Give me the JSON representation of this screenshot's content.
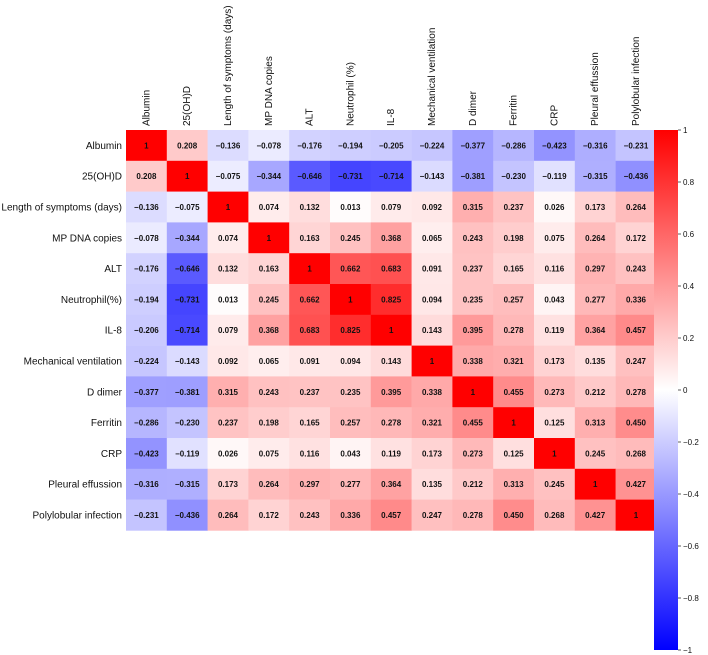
{
  "chart_data": {
    "type": "heatmap",
    "title": "",
    "labels": [
      "Albumin",
      "25(OH)D",
      "Length of symptoms  (days)",
      "MP DNA copies",
      "ALT",
      "Neutrophil(%)",
      "IL-8",
      "Mechanical ventilation",
      "D dimer",
      "Ferritin",
      "CRP",
      "Pleural effussion",
      "Polylobular infection"
    ],
    "column_labels": [
      "Albumin",
      "25(OH)D",
      "Length of symptoms   (days)",
      "MP DNA copies",
      "ALT",
      "Neutrophil (%)",
      "IL-8",
      "Mechanical ventilation",
      "D dimer",
      "Ferritin",
      "CRP",
      "Pleural effussion",
      "Polylobular infection"
    ],
    "matrix": [
      [
        1,
        0.208,
        -0.136,
        -0.078,
        -0.176,
        -0.194,
        -0.205,
        -0.224,
        -0.377,
        -0.286,
        -0.423,
        -0.316,
        -0.231
      ],
      [
        0.208,
        1,
        -0.075,
        -0.344,
        -0.646,
        -0.731,
        -0.714,
        -0.143,
        -0.381,
        -0.23,
        -0.119,
        -0.315,
        -0.436
      ],
      [
        -0.136,
        -0.075,
        1,
        0.074,
        0.132,
        0.013,
        0.079,
        0.092,
        0.315,
        0.237,
        0.026,
        0.173,
        0.264
      ],
      [
        -0.078,
        -0.344,
        0.074,
        1,
        0.163,
        0.245,
        0.368,
        0.065,
        0.243,
        0.198,
        0.075,
        0.264,
        0.172
      ],
      [
        -0.176,
        -0.646,
        0.132,
        0.163,
        1,
        0.662,
        0.683,
        0.091,
        0.237,
        0.165,
        0.116,
        0.297,
        0.243
      ],
      [
        -0.194,
        -0.731,
        0.013,
        0.245,
        0.662,
        1,
        0.825,
        0.094,
        0.235,
        0.257,
        0.043,
        0.277,
        0.336
      ],
      [
        -0.206,
        -0.714,
        0.079,
        0.368,
        0.683,
        0.825,
        1,
        0.143,
        0.395,
        0.278,
        0.119,
        0.364,
        0.457
      ],
      [
        -0.224,
        -0.143,
        0.092,
        0.065,
        0.091,
        0.094,
        0.143,
        1,
        0.338,
        0.321,
        0.173,
        0.135,
        0.247
      ],
      [
        -0.377,
        -0.381,
        0.315,
        0.243,
        0.237,
        0.235,
        0.395,
        0.338,
        1,
        0.455,
        0.273,
        0.212,
        0.278
      ],
      [
        -0.286,
        -0.23,
        0.237,
        0.198,
        0.165,
        0.257,
        0.278,
        0.321,
        0.455,
        1,
        0.125,
        0.313,
        0.45
      ],
      [
        -0.423,
        -0.119,
        0.026,
        0.075,
        0.116,
        0.043,
        0.119,
        0.173,
        0.273,
        0.125,
        1,
        0.245,
        0.268
      ],
      [
        -0.316,
        -0.315,
        0.173,
        0.264,
        0.297,
        0.277,
        0.364,
        0.135,
        0.212,
        0.313,
        0.245,
        1,
        0.427
      ],
      [
        -0.231,
        -0.436,
        0.264,
        0.172,
        0.243,
        0.336,
        0.457,
        0.247,
        0.278,
        0.45,
        0.268,
        0.427,
        1
      ]
    ],
    "value_labels": [
      [
        "1",
        "0.208",
        "−0.136",
        "−0.078",
        "−0.176",
        "−0.194",
        "−0.205",
        "−0.224",
        "−0.377",
        "−0.286",
        "−0.423",
        "−0.316",
        "−0.231"
      ],
      [
        "0.208",
        "1",
        "−0.075",
        "−0.344",
        "−0.646",
        "−0.731",
        "−0.714",
        "−0.143",
        "−0.381",
        "−0.230",
        "−0.119",
        "−0.315",
        "−0.436"
      ],
      [
        "−0.136",
        "−0.075",
        "1",
        "0.074",
        "0.132",
        "0.013",
        "0.079",
        "0.092",
        "0.315",
        "0.237",
        "0.026",
        "0.173",
        "0.264"
      ],
      [
        "−0.078",
        "−0.344",
        "0.074",
        "1",
        "0.163",
        "0.245",
        "0.368",
        "0.065",
        "0.243",
        "0.198",
        "0.075",
        "0.264",
        "0.172"
      ],
      [
        "−0.176",
        "−0.646",
        "0.132",
        "0.163",
        "1",
        "0.662",
        "0.683",
        "0.091",
        "0.237",
        "0.165",
        "0.116",
        "0.297",
        "0.243"
      ],
      [
        "−0.194",
        "−0.731",
        "0.013",
        "0.245",
        "0.662",
        "1",
        "0.825",
        "0.094",
        "0.235",
        "0.257",
        "0.043",
        "0.277",
        "0.336"
      ],
      [
        "−0.206",
        "−0.714",
        "0.079",
        "0.368",
        "0.683",
        "0.825",
        "1",
        "0.143",
        "0.395",
        "0.278",
        "0.119",
        "0.364",
        "0.457"
      ],
      [
        "−0.224",
        "−0.143",
        "0.092",
        "0.065",
        "0.091",
        "0.094",
        "0.143",
        "1",
        "0.338",
        "0.321",
        "0.173",
        "0.135",
        "0.247"
      ],
      [
        "−0.377",
        "−0.381",
        "0.315",
        "0.243",
        "0.237",
        "0.235",
        "0.395",
        "0.338",
        "1",
        "0.455",
        "0.273",
        "0.212",
        "0.278"
      ],
      [
        "−0.286",
        "−0.230",
        "0.237",
        "0.198",
        "0.165",
        "0.257",
        "0.278",
        "0.321",
        "0.455",
        "1",
        "0.125",
        "0.313",
        "0.450"
      ],
      [
        "−0.423",
        "−0.119",
        "0.026",
        "0.075",
        "0.116",
        "0.043",
        "0.119",
        "0.173",
        "0.273",
        "0.125",
        "1",
        "0.245",
        "0.268"
      ],
      [
        "−0.316",
        "−0.315",
        "0.173",
        "0.264",
        "0.297",
        "0.277",
        "0.364",
        "0.135",
        "0.212",
        "0.313",
        "0.245",
        "1",
        "0.427"
      ],
      [
        "−0.231",
        "−0.436",
        "0.264",
        "0.172",
        "0.243",
        "0.336",
        "0.457",
        "0.247",
        "0.278",
        "0.450",
        "0.268",
        "0.427",
        "1"
      ]
    ],
    "color_scale": {
      "min": -1,
      "max": 1,
      "low_color": "#0000ff",
      "mid_color": "#ffffff",
      "high_color": "#ff0000",
      "ticks": [
        1,
        0.8,
        0.6,
        0.4,
        0.2,
        0,
        -0.2,
        -0.4,
        -0.6,
        -0.8,
        -1
      ],
      "tick_labels": [
        "1",
        "0.8",
        "0.6",
        "0.4",
        "0.2",
        "0",
        "−0.2",
        "−0.4",
        "−0.6",
        "−0.8",
        "−1"
      ],
      "placement": "right"
    }
  }
}
